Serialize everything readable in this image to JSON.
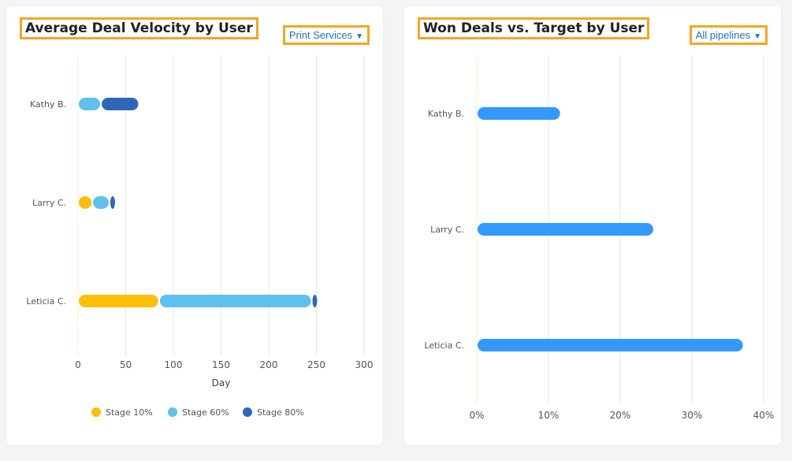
{
  "left": {
    "title": "Average Deal Velocity by User",
    "dropdown": {
      "label": "Print Services",
      "icon": "caret-down-icon"
    }
  },
  "right": {
    "title": "Won Deals vs. Target by User",
    "dropdown": {
      "label": "All pipelines",
      "icon": "caret-down-icon"
    }
  },
  "colors": {
    "stage10": "#fbbf0a",
    "stage60": "#5ec0ec",
    "stage80": "#2f67b8",
    "won": "#3399ff",
    "title_border": "#f5a623",
    "link": "#1f6fc8"
  },
  "chart_data": [
    {
      "type": "bar",
      "stacked": true,
      "orientation": "horizontal",
      "title": "Average Deal Velocity by User",
      "categories": [
        "Kathy B.",
        "Larry C.",
        "Leticia C."
      ],
      "series": [
        {
          "name": "Stage 10%",
          "values": [
            0,
            15,
            85
          ]
        },
        {
          "name": "Stage 60%",
          "values": [
            24,
            18,
            160
          ]
        },
        {
          "name": "Stage 80%",
          "values": [
            40,
            5,
            6
          ]
        }
      ],
      "xlabel": "Day",
      "xlim": [
        0,
        300
      ],
      "xticks": [
        "0",
        "50",
        "100",
        "150",
        "200",
        "250",
        "300"
      ],
      "grid": true,
      "legend": "bottom"
    },
    {
      "type": "bar",
      "orientation": "horizontal",
      "title": "Won Deals vs. Target by User",
      "categories": [
        "Kathy B.",
        "Larry C.",
        "Leticia C."
      ],
      "series": [
        {
          "values": [
            11.5,
            24.5,
            37
          ]
        }
      ],
      "xlim": [
        0,
        40
      ],
      "xticks": [
        "0%",
        "10%",
        "20%",
        "30%",
        "40%"
      ],
      "grid": true,
      "legend": "none"
    }
  ]
}
